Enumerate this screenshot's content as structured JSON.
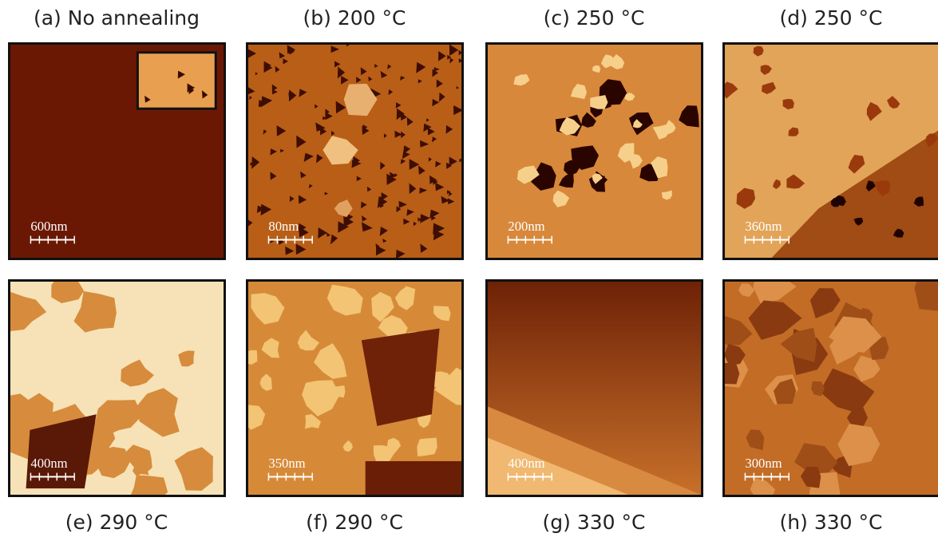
{
  "panels": [
    {
      "caption": "(a) No annealing",
      "scale": "600nm"
    },
    {
      "caption": "(b) 200 °C",
      "scale": "80nm"
    },
    {
      "caption": "(c) 250 °C",
      "scale": "200nm"
    },
    {
      "caption": "(d) 250 °C",
      "scale": "360nm"
    },
    {
      "caption": "(e) 290 °C",
      "scale": "400nm"
    },
    {
      "caption": "(f) 290 °C",
      "scale": "350nm"
    },
    {
      "caption": "(g) 330 °C",
      "scale": "400nm"
    },
    {
      "caption": "(h) 330 °C",
      "scale": "300nm"
    }
  ]
}
